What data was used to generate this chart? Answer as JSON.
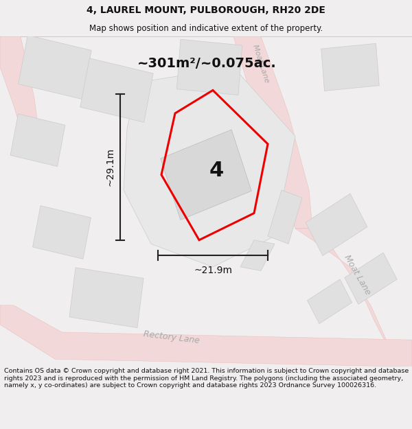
{
  "title_line1": "4, LAUREL MOUNT, PULBOROUGH, RH20 2DE",
  "title_line2": "Map shows position and indicative extent of the property.",
  "area_text": "~301m²/~0.075ac.",
  "dim_width": "~21.9m",
  "dim_height": "~29.1m",
  "property_number": "4",
  "footer_text": "Contains OS data © Crown copyright and database right 2021. This information is subject to Crown copyright and database rights 2023 and is reproduced with the permission of HM Land Registry. The polygons (including the associated geometry, namely x, y co-ordinates) are subject to Crown copyright and database rights 2023 Ordnance Survey 100026316.",
  "bg_color": "#f0eeee",
  "map_bg": "#f8f8f8",
  "road_fill": "#f2d8d8",
  "road_edge": "#e8b8b8",
  "building_fill": "#e0e0e0",
  "building_edge": "#cccccc",
  "plot_fill": "#e8e8e8",
  "plot_edge": "#cccccc",
  "prop_color": "#ee0000",
  "dim_color": "#222222",
  "road_text_color": "#aaaaaa",
  "text_color": "#111111",
  "footer_color": "#111111",
  "sep_line_color": "#bbbbbb"
}
